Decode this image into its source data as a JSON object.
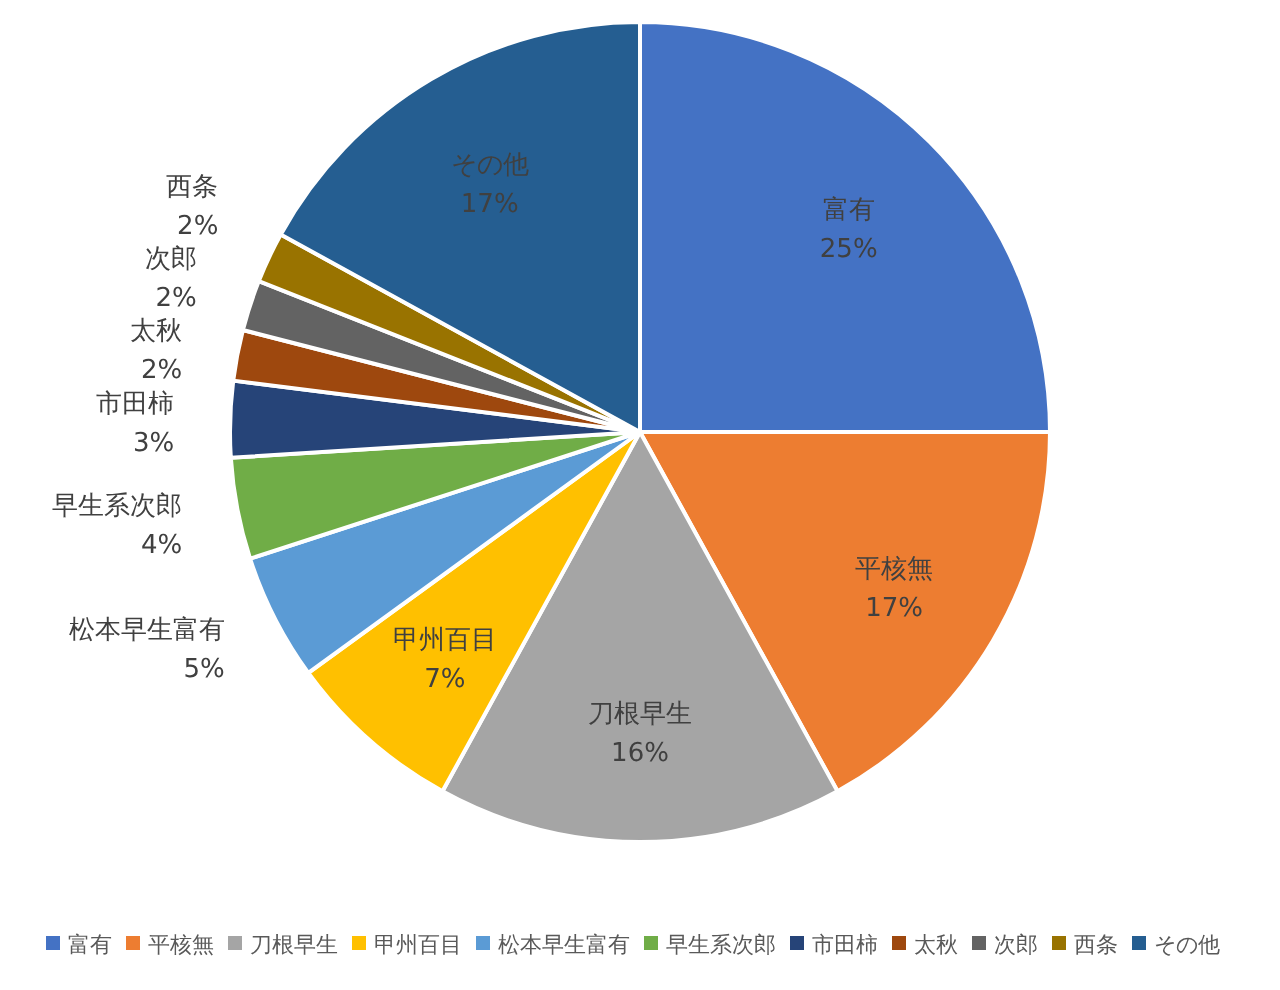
{
  "chart_data": {
    "type": "pie",
    "categories": [
      "富有",
      "平核無",
      "刀根早生",
      "甲州百目",
      "松本早生富有",
      "早生系次郎",
      "市田柿",
      "太秋",
      "次郎",
      "西条",
      "その他"
    ],
    "values": [
      25,
      17,
      16,
      7,
      5,
      4,
      3,
      2,
      2,
      2,
      17
    ],
    "colors": [
      "#4472c4",
      "#ed7d31",
      "#a5a5a5",
      "#ffc000",
      "#5b9bd5",
      "#70ad47",
      "#264478",
      "#9e480e",
      "#636363",
      "#997300",
      "#255e91"
    ],
    "value_labels": [
      "25%",
      "17%",
      "16%",
      "7%",
      "5%",
      "4%",
      "3%",
      "2%",
      "2%",
      "2%",
      "17%"
    ],
    "legend": "bottom"
  }
}
